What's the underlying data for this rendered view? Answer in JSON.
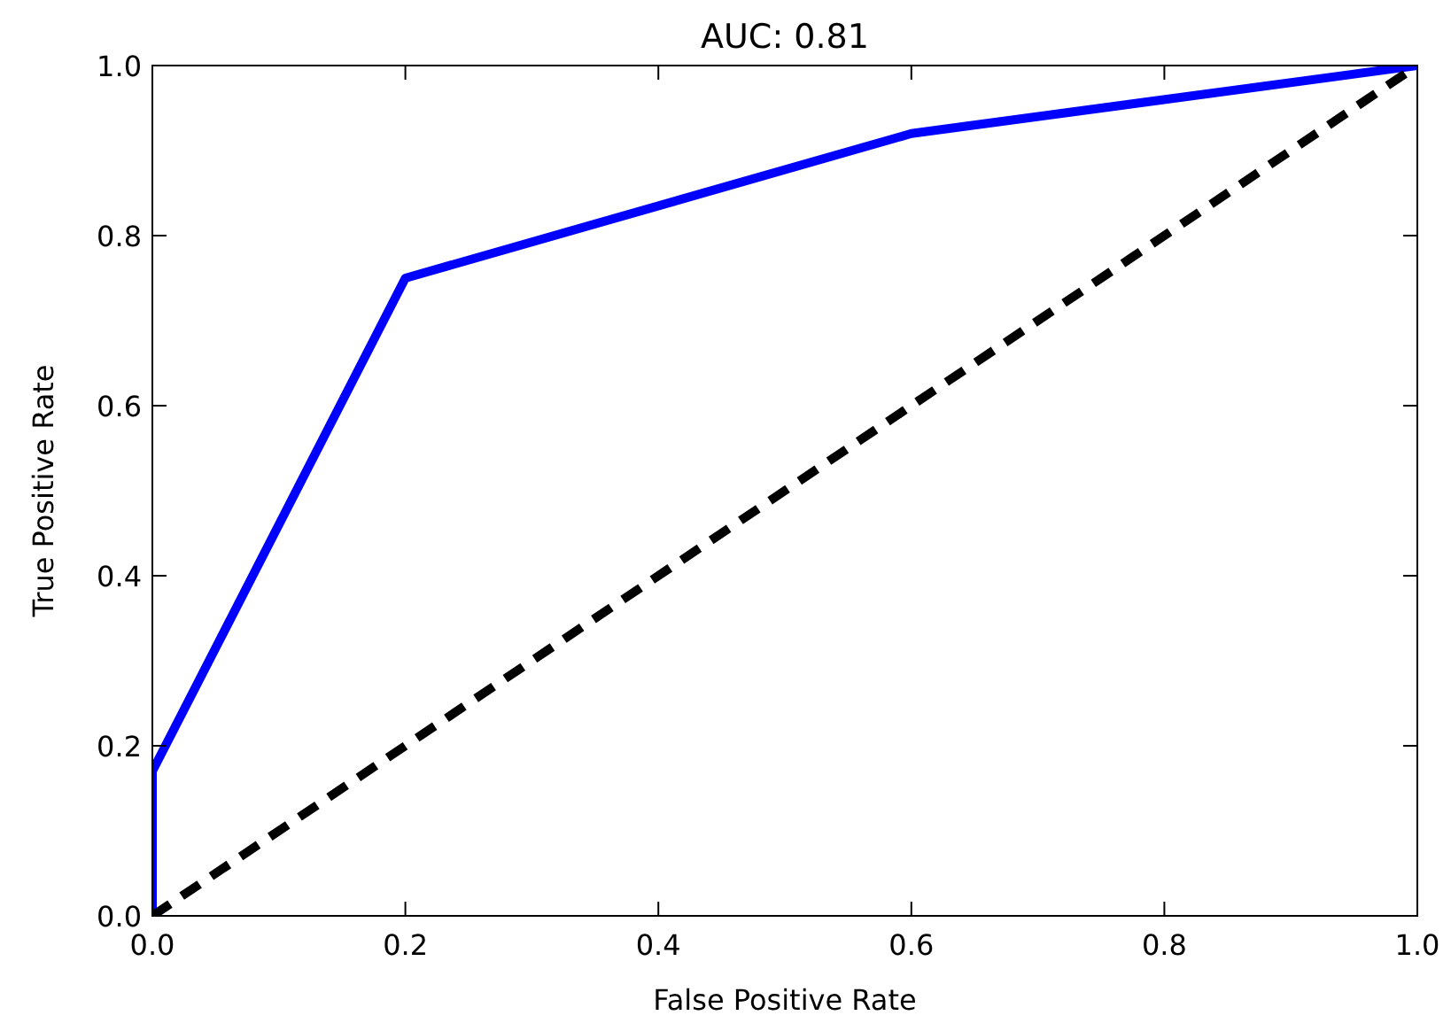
{
  "chart_data": {
    "type": "line",
    "title": "AUC: 0.81",
    "xlabel": "False Positive Rate",
    "ylabel": "True Positive Rate",
    "xlim": [
      0,
      1
    ],
    "ylim": [
      0,
      1
    ],
    "xticks": [
      {
        "value": 0,
        "label": "0.0"
      },
      0.2,
      0.4,
      0.6,
      0.8,
      {
        "value": 1,
        "label": "1.0"
      }
    ],
    "yticks": [
      {
        "value": 0,
        "label": "0.0"
      },
      0.2,
      0.4,
      0.6,
      0.8,
      {
        "value": 1,
        "label": "1.0"
      }
    ],
    "series": [
      {
        "color": "#0000ff",
        "x": [
          0,
          0,
          0.2,
          0.6,
          1
        ],
        "values": [
          0,
          0.17,
          0.75,
          0.92,
          1
        ],
        "line_style": "solid"
      },
      {
        "color": "#000000",
        "x": [
          0,
          1
        ],
        "values": [
          0,
          1
        ],
        "line_style": "dashed"
      }
    ]
  }
}
